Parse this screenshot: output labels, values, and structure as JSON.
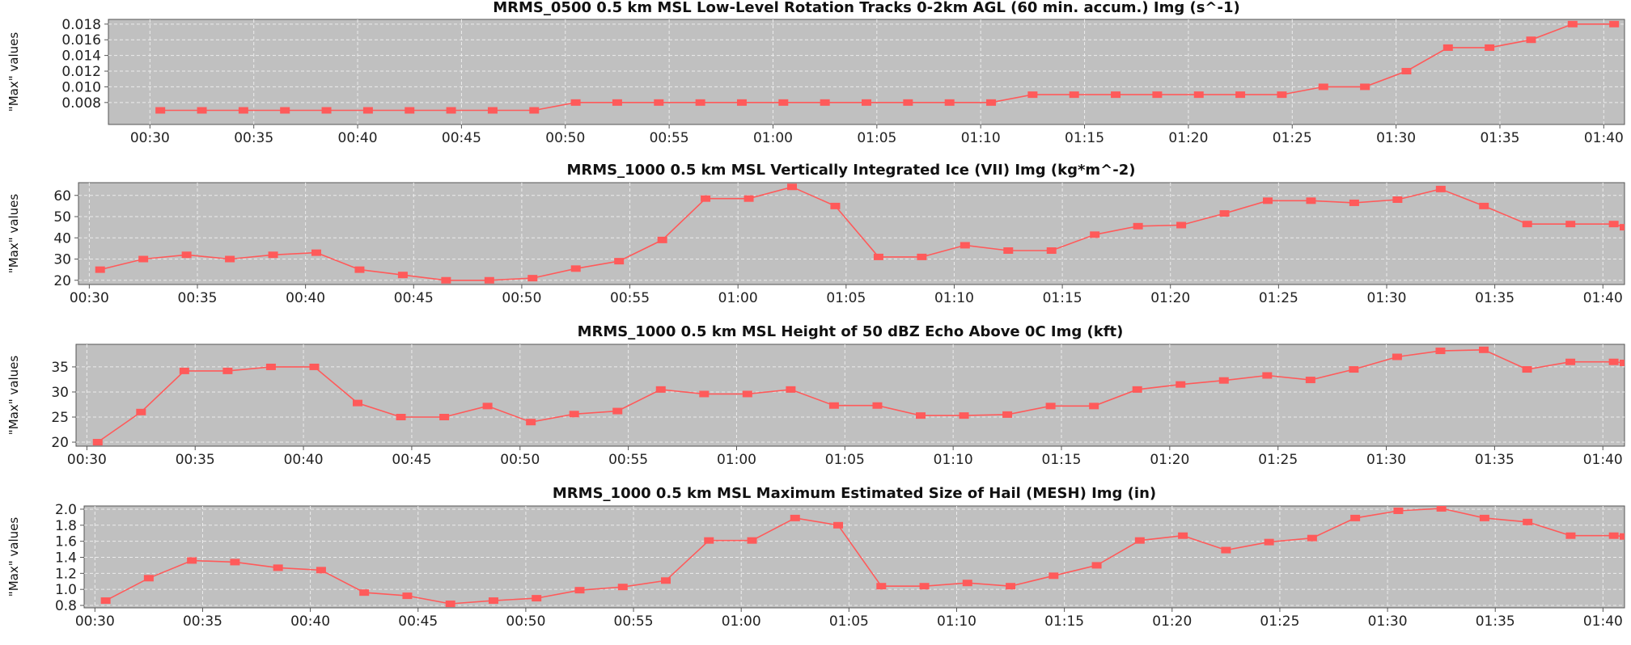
{
  "colors": {
    "plot_bg": "#c0c0c0",
    "grid": "#ececec",
    "series": "#ff5a5a",
    "axis": "#555555"
  },
  "chart_data": [
    {
      "type": "line",
      "title": "MRMS_0500 0.5 km MSL Low-Level Rotation Tracks 0-2km AGL (60 min. accum.) Img (s^-1)",
      "ylabel": "\"Max\" values",
      "xlim": [
        "00:28",
        "01:41"
      ],
      "ylim": [
        0.0052,
        0.0186
      ],
      "yticks": [
        0.008,
        0.01,
        0.012,
        0.014,
        0.016,
        0.018
      ],
      "ytick_labels": [
        "0.008",
        "0.010",
        "0.012",
        "0.014",
        "0.016",
        "0.018"
      ],
      "xticks": [
        "00:30",
        "00:35",
        "00:40",
        "00:45",
        "00:50",
        "00:55",
        "01:00",
        "01:05",
        "01:10",
        "01:15",
        "01:20",
        "01:25",
        "01:30",
        "01:35",
        "01:40"
      ],
      "grid": true,
      "series": [
        {
          "x": [
            "00:30:30",
            "00:32:30",
            "00:34:30",
            "00:36:30",
            "00:38:30",
            "00:40:30",
            "00:42:30",
            "00:44:30",
            "00:46:30",
            "00:48:30",
            "00:50:30",
            "00:52:30",
            "00:54:30",
            "00:56:30",
            "00:58:30",
            "01:00:30",
            "01:02:30",
            "01:04:30",
            "01:06:30",
            "01:08:30",
            "01:10:30",
            "01:12:30",
            "01:14:30",
            "01:16:30",
            "01:18:30",
            "01:20:30",
            "01:22:30",
            "01:24:30",
            "01:26:30",
            "01:28:30",
            "01:30:30",
            "01:32:30",
            "01:34:30",
            "01:36:30",
            "01:38:30",
            "01:40:30"
          ],
          "values": [
            0.007,
            0.007,
            0.007,
            0.007,
            0.007,
            0.007,
            0.007,
            0.007,
            0.007,
            0.007,
            0.008,
            0.008,
            0.008,
            0.008,
            0.008,
            0.008,
            0.008,
            0.008,
            0.008,
            0.008,
            0.008,
            0.009,
            0.009,
            0.009,
            0.009,
            0.009,
            0.009,
            0.009,
            0.01,
            0.01,
            0.012,
            0.015,
            0.015,
            0.016,
            0.018,
            0.018
          ]
        }
      ]
    },
    {
      "type": "line",
      "title": "MRMS_1000 0.5 km MSL Vertically Integrated Ice (VII) Img (kg*m^-2)",
      "ylabel": "\"Max\" values",
      "xlim": [
        "00:29:30",
        "01:41"
      ],
      "ylim": [
        18,
        66
      ],
      "yticks": [
        20,
        30,
        40,
        50,
        60
      ],
      "ytick_labels": [
        "20",
        "30",
        "40",
        "50",
        "60"
      ],
      "xticks": [
        "00:30",
        "00:35",
        "00:40",
        "00:45",
        "00:50",
        "00:55",
        "01:00",
        "01:05",
        "01:10",
        "01:15",
        "01:20",
        "01:25",
        "01:30",
        "01:35",
        "01:40"
      ],
      "grid": true,
      "series": [
        {
          "x": [
            "00:30:30",
            "00:32:30",
            "00:34:30",
            "00:36:30",
            "00:38:30",
            "00:40:30",
            "00:42:30",
            "00:44:30",
            "00:46:30",
            "00:48:30",
            "00:50:30",
            "00:52:30",
            "00:54:30",
            "00:56:30",
            "00:58:30",
            "01:00:30",
            "01:02:30",
            "01:04:30",
            "01:06:30",
            "01:08:30",
            "01:10:30",
            "01:12:30",
            "01:14:30",
            "01:16:30",
            "01:18:30",
            "01:20:30",
            "01:22:30",
            "01:24:30",
            "01:26:30",
            "01:28:30",
            "01:30:30",
            "01:32:30",
            "01:34:30",
            "01:36:30",
            "01:38:30",
            "01:40:30",
            "01:41:00"
          ],
          "values": [
            25,
            30,
            32,
            30,
            32,
            33,
            25,
            22.5,
            20,
            20,
            21,
            25.5,
            29,
            39,
            58.5,
            58.5,
            64,
            55,
            31,
            31,
            36.5,
            34,
            34,
            41.5,
            45.5,
            46,
            51.5,
            57.5,
            57.5,
            56.5,
            58,
            63,
            55,
            46.5,
            46.5,
            46.5,
            45
          ]
        }
      ]
    },
    {
      "type": "line",
      "title": "MRMS_1000 0.5 km MSL Height of 50 dBZ Echo Above 0C Img (kft)",
      "ylabel": "\"Max\" values",
      "xlim": [
        "00:29:30",
        "01:41"
      ],
      "ylim": [
        19.2,
        39.5
      ],
      "yticks": [
        20,
        25,
        30,
        35
      ],
      "ytick_labels": [
        "20",
        "25",
        "30",
        "35"
      ],
      "xticks": [
        "00:30",
        "00:35",
        "00:40",
        "00:45",
        "00:50",
        "00:55",
        "01:00",
        "01:05",
        "01:10",
        "01:15",
        "01:20",
        "01:25",
        "01:30",
        "01:35",
        "01:40"
      ],
      "grid": true,
      "series": [
        {
          "x": [
            "00:30:30",
            "00:32:30",
            "00:34:30",
            "00:36:30",
            "00:38:30",
            "00:40:30",
            "00:42:30",
            "00:44:30",
            "00:46:30",
            "00:48:30",
            "00:50:30",
            "00:52:30",
            "00:54:30",
            "00:56:30",
            "00:58:30",
            "01:00:30",
            "01:02:30",
            "01:04:30",
            "01:06:30",
            "01:08:30",
            "01:10:30",
            "01:12:30",
            "01:14:30",
            "01:16:30",
            "01:18:30",
            "01:20:30",
            "01:22:30",
            "01:24:30",
            "01:26:30",
            "01:28:30",
            "01:30:30",
            "01:32:30",
            "01:34:30",
            "01:36:30",
            "01:38:30",
            "01:40:30",
            "01:41:00"
          ],
          "values": [
            20,
            26,
            34.2,
            34.2,
            35,
            35,
            27.8,
            25,
            25,
            27.2,
            24,
            25.6,
            26.2,
            30.5,
            29.6,
            29.6,
            30.5,
            27.3,
            27.3,
            25.3,
            25.3,
            25.5,
            27.2,
            27.2,
            30.5,
            31.5,
            32.3,
            33.3,
            32.4,
            34.5,
            37,
            38.2,
            38.4,
            34.5,
            36,
            36,
            35.8
          ]
        }
      ]
    },
    {
      "type": "line",
      "title": "MRMS_1000 0.5 km MSL Maximum Estimated Size of Hail (MESH) Img (in)",
      "ylabel": "\"Max\" values",
      "xlim": [
        "00:29:30",
        "01:41"
      ],
      "ylim": [
        0.77,
        2.04
      ],
      "yticks": [
        0.8,
        1.0,
        1.2,
        1.4,
        1.6,
        1.8,
        2.0
      ],
      "ytick_labels": [
        "0.8",
        "1.0",
        "1.2",
        "1.4",
        "1.6",
        "1.8",
        "2.0"
      ],
      "xticks": [
        "00:30",
        "00:35",
        "00:40",
        "00:45",
        "00:50",
        "00:55",
        "01:00",
        "01:05",
        "01:10",
        "01:15",
        "01:20",
        "01:25",
        "01:30",
        "01:35",
        "01:40"
      ],
      "grid": true,
      "series": [
        {
          "x": [
            "00:30:30",
            "00:32:30",
            "00:34:30",
            "00:36:30",
            "00:38:30",
            "00:40:30",
            "00:42:30",
            "00:44:30",
            "00:46:30",
            "00:48:30",
            "00:50:30",
            "00:52:30",
            "00:54:30",
            "00:56:30",
            "00:58:30",
            "01:00:30",
            "01:02:30",
            "01:04:30",
            "01:06:30",
            "01:08:30",
            "01:10:30",
            "01:12:30",
            "01:14:30",
            "01:16:30",
            "01:18:30",
            "01:20:30",
            "01:22:30",
            "01:24:30",
            "01:26:30",
            "01:28:30",
            "01:30:30",
            "01:32:30",
            "01:34:30",
            "01:36:30",
            "01:38:30",
            "01:40:30",
            "01:41:00"
          ],
          "values": [
            0.86,
            1.14,
            1.36,
            1.34,
            1.27,
            1.24,
            0.96,
            0.92,
            0.82,
            0.86,
            0.89,
            0.99,
            1.03,
            1.11,
            1.61,
            1.61,
            1.89,
            1.8,
            1.04,
            1.04,
            1.08,
            1.04,
            1.17,
            1.3,
            1.61,
            1.67,
            1.49,
            1.59,
            1.64,
            1.89,
            1.98,
            2.01,
            1.89,
            1.84,
            1.67,
            1.67,
            1.66
          ]
        }
      ]
    }
  ]
}
